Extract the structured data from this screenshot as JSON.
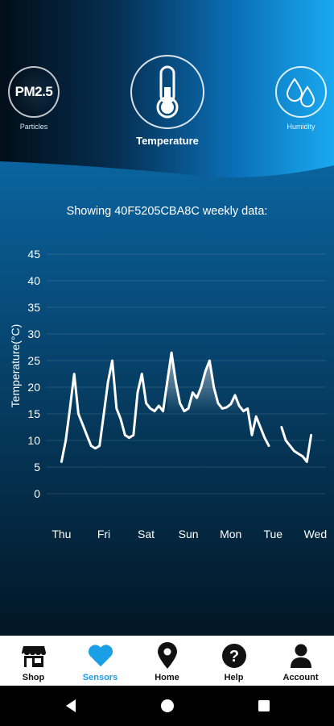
{
  "sensor_tabs": {
    "pm": {
      "icon_text": "PM2.5",
      "label": "Particles"
    },
    "temperature": {
      "label": "Temperature"
    },
    "humidity": {
      "label": "Humidity"
    }
  },
  "showing_text": "Showing 40F5205CBA8C weekly data:",
  "chart_data": {
    "type": "line",
    "title": "",
    "xlabel": "",
    "ylabel": "Temperature(°C)",
    "ylim": [
      0,
      45
    ],
    "yticks": [
      0,
      5,
      10,
      15,
      20,
      25,
      30,
      35,
      40,
      45
    ],
    "categories": [
      "Thu",
      "Fri",
      "Sat",
      "Sun",
      "Mon",
      "Tue",
      "Wed"
    ],
    "grid": true,
    "legend": "none",
    "series": [
      {
        "name": "",
        "x": [
          0,
          0.1,
          0.2,
          0.3,
          0.4,
          0.5,
          0.6,
          0.7,
          0.8,
          0.9,
          1.0,
          1.1,
          1.2,
          1.3,
          1.4,
          1.5,
          1.6,
          1.7,
          1.8,
          1.9,
          2.0,
          2.1,
          2.2,
          2.3,
          2.4,
          2.5,
          2.6,
          2.7,
          2.8,
          2.9,
          3.0,
          3.1,
          3.2,
          3.3,
          3.4,
          3.5,
          3.6,
          3.7,
          3.8,
          3.9,
          4.0,
          4.1,
          4.2,
          4.3,
          4.4,
          4.5,
          4.6,
          4.7,
          4.8,
          4.9,
          5.0,
          5.1
        ],
        "values": [
          6,
          10,
          16,
          22.5,
          15,
          13,
          11,
          9,
          8.5,
          9,
          15,
          21,
          25,
          16,
          14,
          11,
          10.5,
          11,
          19,
          22.5,
          17,
          16,
          15.5,
          16.5,
          15.5,
          21,
          26.5,
          21,
          17,
          15.5,
          16,
          19,
          18,
          20,
          23,
          25,
          20,
          17,
          16,
          16.2,
          16.8,
          18.5,
          16.5,
          15.5,
          16,
          11,
          14.5,
          12.5,
          10.5,
          9,
          null,
          null
        ]
      },
      {
        "name": "",
        "x": [
          5.2,
          5.3,
          5.4,
          5.5,
          5.6,
          5.7,
          5.8,
          5.9
        ],
        "values": [
          12.5,
          10,
          9,
          8,
          7.5,
          7,
          6,
          11
        ]
      }
    ]
  },
  "bottom_nav": [
    {
      "label": "Shop",
      "icon": "shop-icon",
      "active": false
    },
    {
      "label": "Sensors",
      "icon": "heart-icon",
      "active": true
    },
    {
      "label": "Home",
      "icon": "location-pin-icon",
      "active": false
    },
    {
      "label": "Help",
      "icon": "help-icon",
      "active": false
    },
    {
      "label": "Account",
      "icon": "account-icon",
      "active": false
    }
  ],
  "colors": {
    "accent": "#1a9fe6",
    "header_dark": "#021a2c",
    "header_light": "#1aa6ee"
  }
}
